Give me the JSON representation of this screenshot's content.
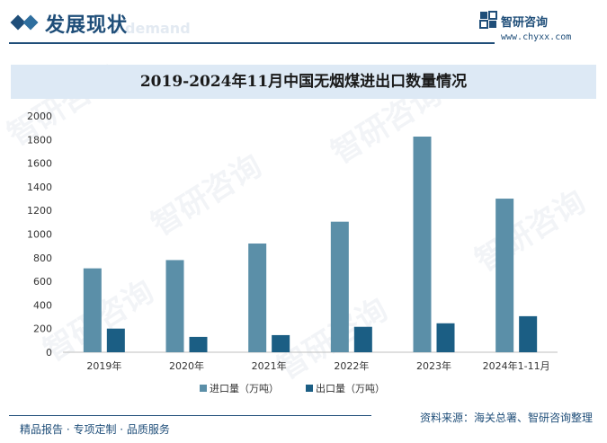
{
  "header": {
    "section_title": "发展现状",
    "ghost_text": "d demand",
    "brand_name": "智研咨询",
    "brand_url": "www.chyxx.com"
  },
  "footer": {
    "left": "精品报告 · 专项定制 · 品质服务",
    "right": "资料来源：海关总署、智研咨询整理"
  },
  "colors": {
    "import": "#5b8fa8",
    "export": "#1b5e84",
    "accent": "#1f4e79"
  },
  "chart_data": {
    "type": "bar",
    "title": "2019-2024年11月中国无烟煤进出口数量情况",
    "categories": [
      "2019年",
      "2020年",
      "2021年",
      "2022年",
      "2023年",
      "2024年1-11月"
    ],
    "series": [
      {
        "name": "进口量（万吨）",
        "values": [
          710,
          780,
          920,
          1105,
          1825,
          1300
        ]
      },
      {
        "name": "出口量（万吨）",
        "values": [
          200,
          130,
          145,
          215,
          245,
          305
        ]
      }
    ],
    "ylim": [
      0,
      2000
    ],
    "yticks": [
      0,
      200,
      400,
      600,
      800,
      1000,
      1200,
      1400,
      1600,
      1800,
      2000
    ],
    "grid": false,
    "legend": "bottom"
  }
}
